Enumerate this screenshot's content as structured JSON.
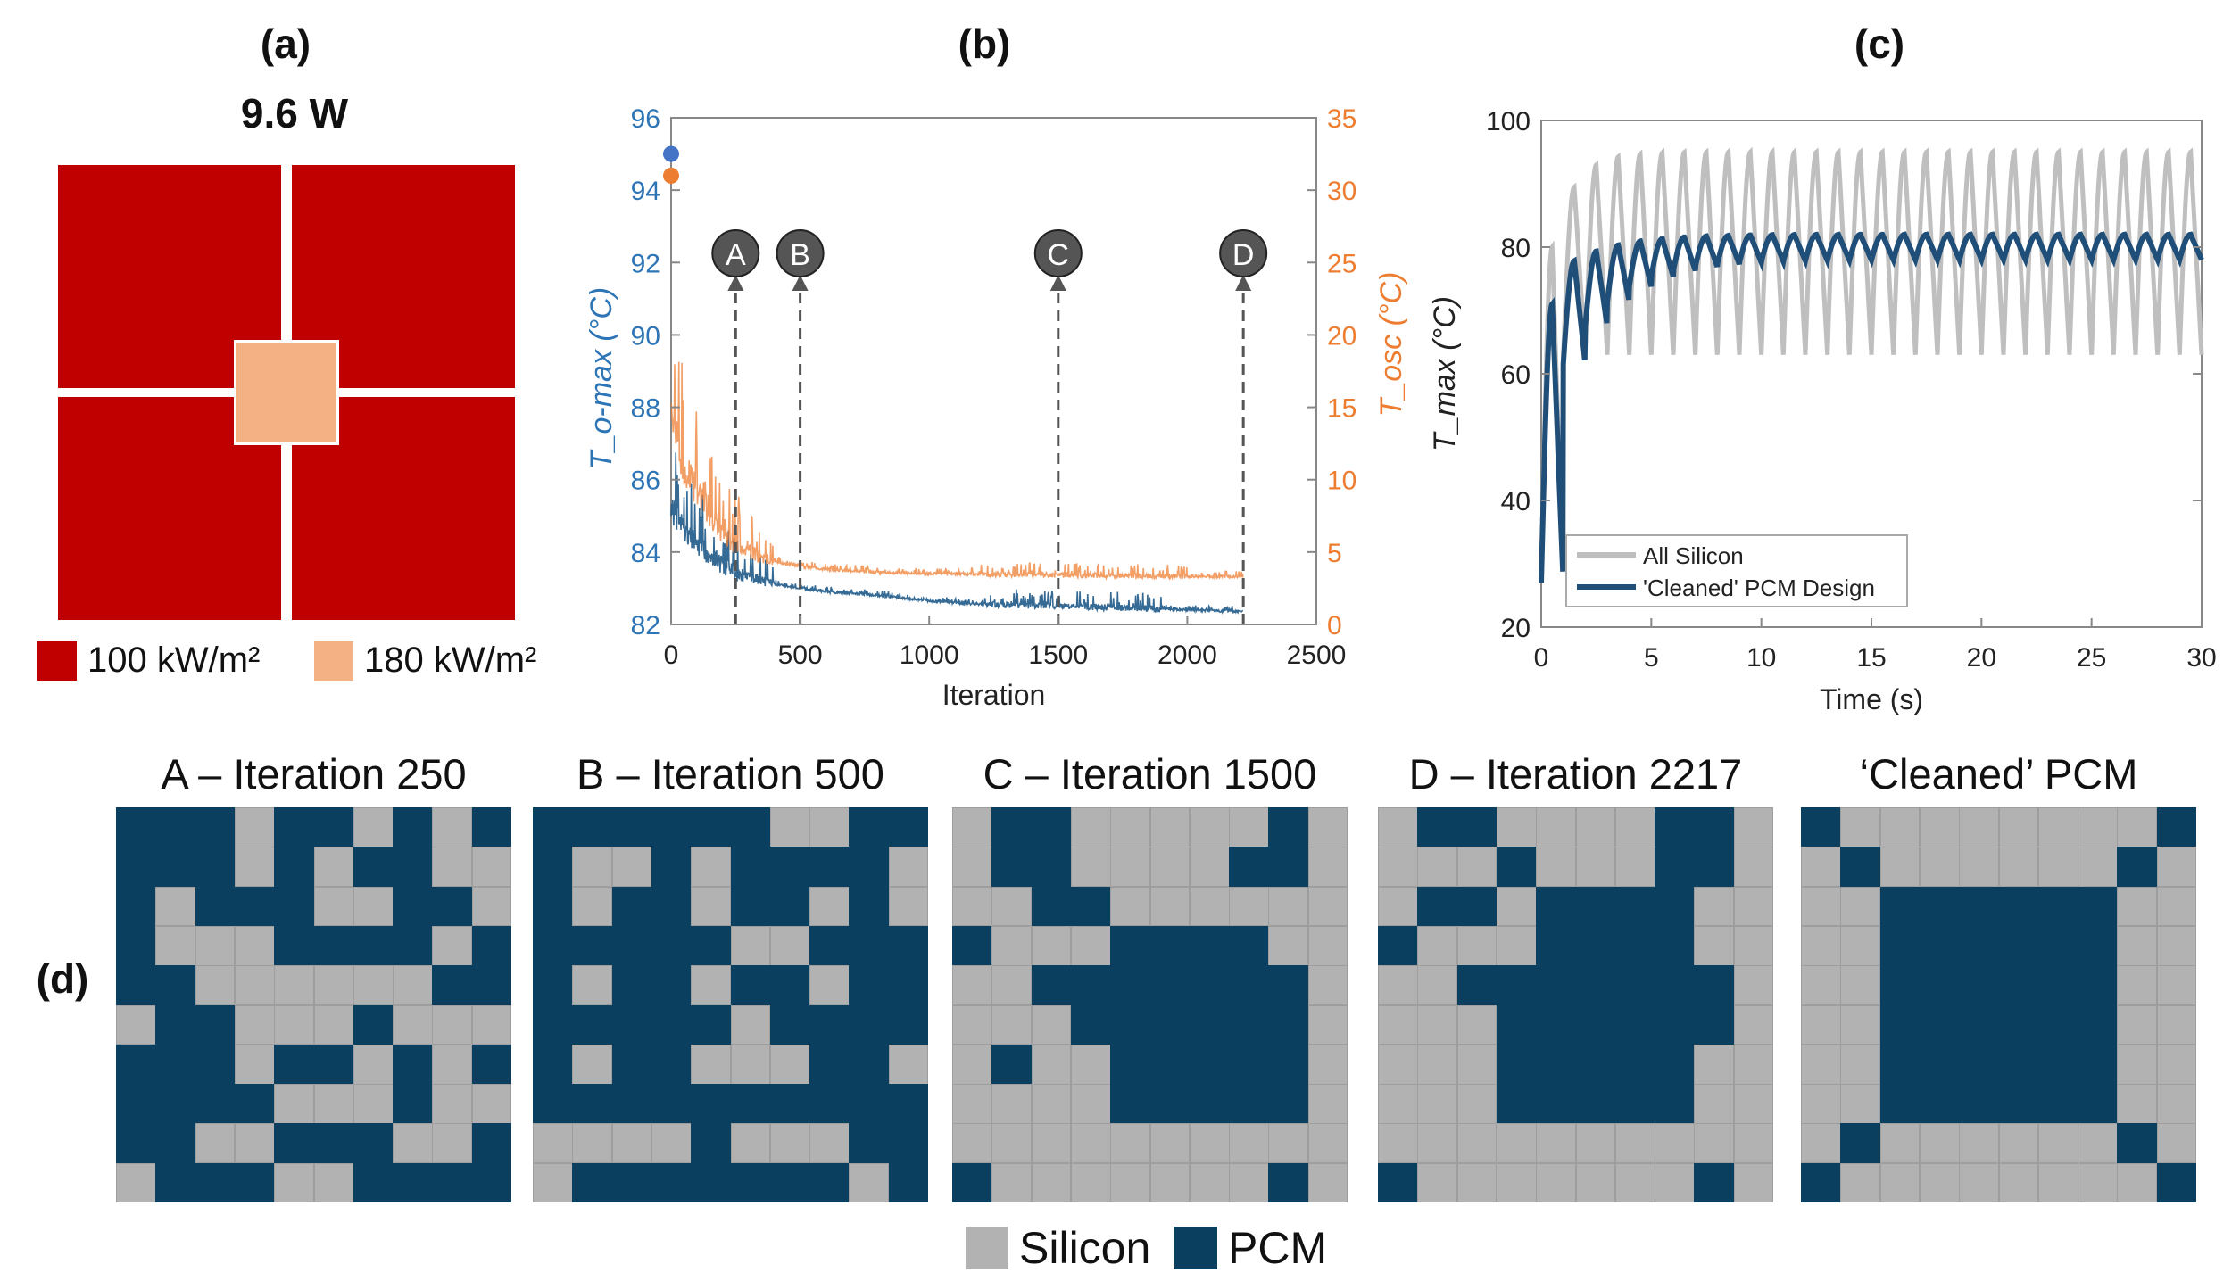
{
  "panels": {
    "a": "(a)",
    "b": "(b)",
    "c": "(c)",
    "d": "(d)"
  },
  "panel_a": {
    "power": "9.6 W",
    "legend": [
      {
        "label": "100 kW/m²",
        "color": "#c00000"
      },
      {
        "label": "180 kW/m²",
        "color": "#f4b183"
      }
    ]
  },
  "chart_data": [
    {
      "type": "line",
      "id": "b",
      "xlabel": "Iteration",
      "ylabel_left": "T_o-max (°C)",
      "ylabel_right": "T_osc (°C)",
      "xlim": [
        0,
        2500
      ],
      "xticks": [
        0,
        500,
        1000,
        1500,
        2000,
        2500
      ],
      "ylim_left": [
        82,
        96
      ],
      "yticks_left": [
        82,
        84,
        86,
        88,
        90,
        92,
        94,
        96
      ],
      "ylim_right": [
        0,
        35
      ],
      "yticks_right": [
        0,
        5,
        10,
        15,
        20,
        25,
        30,
        35
      ],
      "left_color": "#2e75b6",
      "right_color": "#ed7d31",
      "series": [
        {
          "axis": "left",
          "color": "#1f5a8a",
          "x": [
            0,
            50,
            100,
            150,
            200,
            250,
            300,
            350,
            400,
            500,
            600,
            800,
            1000,
            1200,
            1500,
            1800,
            2000,
            2217
          ],
          "values": [
            85.2,
            84.6,
            84.2,
            83.9,
            83.6,
            83.4,
            83.3,
            83.2,
            83.1,
            83.0,
            82.9,
            82.8,
            82.65,
            82.55,
            82.5,
            82.45,
            82.4,
            82.35
          ]
        },
        {
          "axis": "right",
          "color": "#ed7d31",
          "x": [
            0,
            50,
            100,
            150,
            200,
            250,
            300,
            350,
            400,
            500,
            600,
            800,
            1000,
            1200,
            1500,
            1800,
            2000,
            2217
          ],
          "values": [
            14,
            11,
            9,
            7.5,
            6.5,
            5.5,
            5.0,
            4.6,
            4.3,
            4.0,
            3.8,
            3.6,
            3.5,
            3.45,
            3.4,
            3.35,
            3.3,
            3.3
          ]
        }
      ],
      "start_points": [
        {
          "axis": "left",
          "x": 0,
          "y": 95.0,
          "color": "#4472c4"
        },
        {
          "axis": "right",
          "x": 0,
          "y": 31.0,
          "color": "#ed7d31"
        }
      ],
      "markers": [
        {
          "label": "A",
          "x": 250
        },
        {
          "label": "B",
          "x": 500
        },
        {
          "label": "C",
          "x": 1500
        },
        {
          "label": "D",
          "x": 2217
        }
      ]
    },
    {
      "type": "line",
      "id": "c",
      "xlabel": "Time (s)",
      "ylabel": "T_max (°C)",
      "xlim": [
        0,
        30
      ],
      "xticks": [
        0,
        5,
        10,
        15,
        20,
        25,
        30
      ],
      "ylim": [
        20,
        100
      ],
      "yticks": [
        20,
        40,
        60,
        80,
        100
      ],
      "legend_position": "bottom-left",
      "series": [
        {
          "name": "All Silicon",
          "color": "#bfbfbf",
          "period": 1,
          "start": 27,
          "peak_first": 80,
          "peak_steady": 95,
          "trough_steady": 63
        },
        {
          "name": "'Cleaned' PCM Design",
          "color": "#1f4e79",
          "period": 1,
          "start": 27,
          "peak_first": 71,
          "peak_steady": 82,
          "trough_steady": 78
        }
      ]
    }
  ],
  "grids": {
    "silicon_color": "#b2b2b2",
    "pcm_color": "#0b3f60",
    "legend": [
      {
        "label": "Silicon",
        "color": "#b2b2b2"
      },
      {
        "label": "PCM",
        "color": "#0b3f60"
      }
    ],
    "items": [
      {
        "title": "A – Iteration 250",
        "cells": [
          "1110110101",
          "1110101100",
          "1011100110",
          "1000111101",
          "1100000011",
          "0110001000",
          "1110110101",
          "1111000100",
          "1100111001",
          "0111001111"
        ]
      },
      {
        "title": "B – Iteration 500",
        "cells": [
          "1111110011",
          "1001011110",
          "1011011010",
          "1111100111",
          "1011011011",
          "1111101111",
          "1011000110",
          "1111111111",
          "0000100011",
          "0111111101"
        ]
      },
      {
        "title": "C – Iteration 1500",
        "cells": [
          "0110000010",
          "0110000110",
          "0011000000",
          "1000111100",
          "0011111110",
          "0001111110",
          "0100111110",
          "0000111110",
          "0000000000",
          "1000000010"
        ]
      },
      {
        "title": "D – Iteration 2217",
        "cells": [
          "0110000110",
          "0001000110",
          "0110111100",
          "1000111100",
          "0011111110",
          "0001111110",
          "0001111100",
          "0001111100",
          "0000000000",
          "1000000010"
        ]
      },
      {
        "title": "‘Cleaned’ PCM",
        "cells": [
          "1000000001",
          "0100000010",
          "0011111100",
          "0011111100",
          "0011111100",
          "0011111100",
          "0011111100",
          "0011111100",
          "0100000010",
          "1000000001"
        ]
      }
    ]
  }
}
